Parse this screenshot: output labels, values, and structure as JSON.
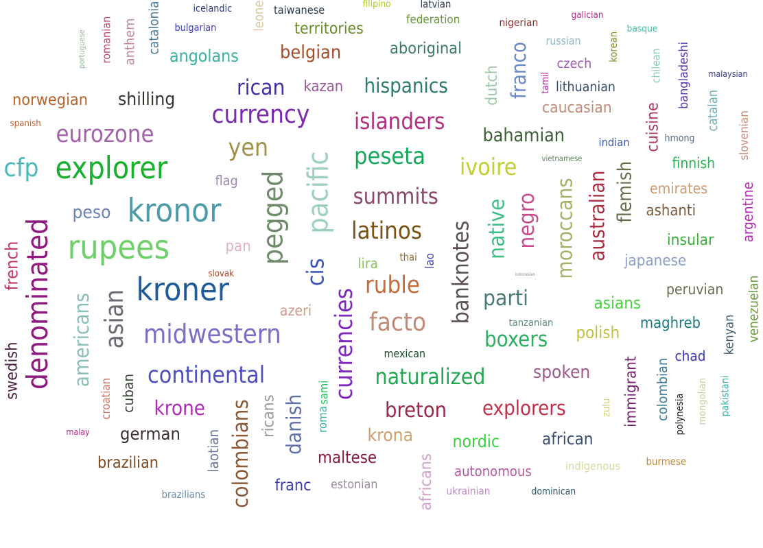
{
  "words": [
    {
      "text": "denominated",
      "color": "#8e1a7e"
    },
    {
      "text": "rupees",
      "color": "#6fcf6a"
    },
    {
      "text": "kronor",
      "color": "#4e9aa8"
    },
    {
      "text": "explorer",
      "color": "#16b02c"
    },
    {
      "text": "kroner",
      "color": "#1d5c98"
    },
    {
      "text": "pegged",
      "color": "#6f8a6a"
    },
    {
      "text": "pacific",
      "color": "#9ed0c0"
    },
    {
      "text": "midwestern",
      "color": "#7b6fc4"
    },
    {
      "text": "currency",
      "color": "#7a2ab0"
    },
    {
      "text": "currencies",
      "color": "#7d29b8"
    },
    {
      "text": "banknotes",
      "color": "#5a4e52"
    },
    {
      "text": "colombians",
      "color": "#8a5a38"
    },
    {
      "text": "continental",
      "color": "#4e50c0"
    },
    {
      "text": "naturalized",
      "color": "#22a850"
    },
    {
      "text": "islanders",
      "color": "#b03080"
    },
    {
      "text": "latinos",
      "color": "#7a5218"
    },
    {
      "text": "summits",
      "color": "#8a4a6e"
    },
    {
      "text": "hispanics",
      "color": "#2a7a70"
    },
    {
      "text": "asian",
      "color": "#6a6a72"
    },
    {
      "text": "cfp",
      "color": "#4ab8b8"
    },
    {
      "text": "ruble",
      "color": "#c66a3a"
    },
    {
      "text": "facto",
      "color": "#c08a78"
    },
    {
      "text": "eurozone",
      "color": "#a262a8"
    },
    {
      "text": "yen",
      "color": "#a0924a"
    },
    {
      "text": "rican",
      "color": "#4030a0"
    },
    {
      "text": "peseta",
      "color": "#14a85a"
    },
    {
      "text": "australian",
      "color": "#aa2e42"
    },
    {
      "text": "moroccans",
      "color": "#a8b068"
    },
    {
      "text": "negro",
      "color": "#c84a8a"
    },
    {
      "text": "native",
      "color": "#3cc088"
    },
    {
      "text": "ivoire",
      "color": "#c0d030"
    },
    {
      "text": "bahamian",
      "color": "#3a5e34"
    },
    {
      "text": "franco",
      "color": "#6a88c8"
    },
    {
      "text": "belgian",
      "color": "#a04e2a"
    },
    {
      "text": "aboriginal",
      "color": "#3a7a6a"
    },
    {
      "text": "shilling",
      "color": "#3a3430"
    },
    {
      "text": "angolans",
      "color": "#3ab0a0"
    },
    {
      "text": "explorers",
      "color": "#c0304a"
    },
    {
      "text": "breton",
      "color": "#9a2a4a"
    },
    {
      "text": "krone",
      "color": "#b02cb8"
    },
    {
      "text": "danish",
      "color": "#6070a8"
    },
    {
      "text": "boxers",
      "color": "#2cb060"
    },
    {
      "text": "parti",
      "color": "#4a7a74"
    },
    {
      "text": "spoken",
      "color": "#a05a8a"
    },
    {
      "text": "flemish",
      "color": "#6a6a50"
    },
    {
      "text": "americans",
      "color": "#8ac0b8"
    },
    {
      "text": "cis",
      "color": "#3a56b8"
    },
    {
      "text": "german",
      "color": "#3a2e2e"
    },
    {
      "text": "norwegian",
      "color": "#b8622a"
    },
    {
      "text": "swedish",
      "color": "#4a2040"
    },
    {
      "text": "french",
      "color": "#c03a70"
    },
    {
      "text": "peso",
      "color": "#6a82b0"
    },
    {
      "text": "immigrant",
      "color": "#7a1e6e"
    },
    {
      "text": "maltese",
      "color": "#8a1a3a"
    },
    {
      "text": "krona",
      "color": "#d0a070"
    },
    {
      "text": "nordic",
      "color": "#3ad040"
    },
    {
      "text": "african",
      "color": "#3a4e70"
    },
    {
      "text": "brazilian",
      "color": "#7a4a22"
    },
    {
      "text": "cuisine",
      "color": "#b03860"
    },
    {
      "text": "colombian",
      "color": "#3a7a98"
    },
    {
      "text": "territories",
      "color": "#6a8a2a"
    },
    {
      "text": "caucasian",
      "color": "#c08a78"
    },
    {
      "text": "japanese",
      "color": "#8aa0c8"
    },
    {
      "text": "polish",
      "color": "#c0c040"
    },
    {
      "text": "asians",
      "color": "#4ad040"
    },
    {
      "text": "maghreb",
      "color": "#1a7a80"
    },
    {
      "text": "peruvian",
      "color": "#6a6a50"
    },
    {
      "text": "venezuelan",
      "color": "#6a9a3a"
    },
    {
      "text": "ricans",
      "color": "#9a9a9a"
    },
    {
      "text": "kazan",
      "color": "#9a5a9a"
    },
    {
      "text": "dutch",
      "color": "#a0c8a8"
    },
    {
      "text": "lithuanian",
      "color": "#3a4e6a"
    },
    {
      "text": "insular",
      "color": "#3ab03a"
    },
    {
      "text": "emirates",
      "color": "#c89a70"
    },
    {
      "text": "ashanti",
      "color": "#7a5a3a"
    },
    {
      "text": "autonomous",
      "color": "#b85aa0"
    },
    {
      "text": "franc",
      "color": "#3a3aa8"
    },
    {
      "text": "africans",
      "color": "#d0a0c8"
    },
    {
      "text": "laotian",
      "color": "#6a7a98"
    },
    {
      "text": "cuban",
      "color": "#3a4a38"
    },
    {
      "text": "pan",
      "color": "#e0b0c0"
    },
    {
      "text": "bangladeshi",
      "color": "#5a3ab0"
    },
    {
      "text": "chad",
      "color": "#3a3ab8"
    },
    {
      "text": "mongolian",
      "color": "#d0c8a0"
    },
    {
      "text": "czech",
      "color": "#a05ab0"
    },
    {
      "text": "russian",
      "color": "#8ab8c8"
    },
    {
      "text": "catalan",
      "color": "#70b0b0"
    },
    {
      "text": "anthem",
      "color": "#c08a9a"
    },
    {
      "text": "catalonia",
      "color": "#4a7a98"
    },
    {
      "text": "estonian",
      "color": "#9a8a9a"
    },
    {
      "text": "kenyan",
      "color": "#3a5a6a"
    },
    {
      "text": "argentine",
      "color": "#b02cb0"
    },
    {
      "text": "slovenian",
      "color": "#c88a70"
    },
    {
      "text": "romanian",
      "color": "#b84a7a"
    },
    {
      "text": "leone",
      "color": "#d8c8a0"
    },
    {
      "text": "finnish",
      "color": "#2ab050"
    },
    {
      "text": "indigenous",
      "color": "#d8d8a0"
    },
    {
      "text": "azeri",
      "color": "#d09a8a"
    },
    {
      "text": "dominican",
      "color": "#2a5a6a"
    },
    {
      "text": "brazilians",
      "color": "#6a8aa8"
    },
    {
      "text": "ukrainian",
      "color": "#c888c8"
    },
    {
      "text": "burmese",
      "color": "#c8883a"
    },
    {
      "text": "mexican",
      "color": "#1a4a2a"
    },
    {
      "text": "federation",
      "color": "#6a9a3a"
    },
    {
      "text": "croatian",
      "color": "#d07060"
    },
    {
      "text": "lira",
      "color": "#8ac060"
    },
    {
      "text": "indian",
      "color": "#3a5ab0"
    },
    {
      "text": "flag",
      "color": "#9a88b0"
    },
    {
      "text": "chilean",
      "color": "#8ad0b0"
    },
    {
      "text": "nigerian",
      "color": "#8a2a2a"
    },
    {
      "text": "taiwanese",
      "color": "#2a3a4a"
    },
    {
      "text": "bulgarian",
      "color": "#3a3ab0"
    },
    {
      "text": "icelandic",
      "color": "#2a3a8a"
    },
    {
      "text": "spanish",
      "color": "#c0602a"
    },
    {
      "text": "malaysian",
      "color": "#3a3a8a"
    },
    {
      "text": "galician",
      "color": "#c02a8a"
    },
    {
      "text": "tanzanian",
      "color": "#5a8a7a"
    },
    {
      "text": "korean",
      "color": "#8a8a2a"
    },
    {
      "text": "hmong",
      "color": "#5a6a7a"
    },
    {
      "text": "polynesia",
      "color": "#1a1a1a"
    },
    {
      "text": "pakistani",
      "color": "#3ab0a0"
    },
    {
      "text": "sami",
      "color": "#2ac05a"
    },
    {
      "text": "roma",
      "color": "#3ab0a0"
    },
    {
      "text": "zulu",
      "color": "#d0d070"
    },
    {
      "text": "tamil",
      "color": "#b02cb0"
    },
    {
      "text": "basque",
      "color": "#3ac0a0"
    },
    {
      "text": "latvian",
      "color": "#2a3a4a"
    },
    {
      "text": "filipino",
      "color": "#b0c82a"
    },
    {
      "text": "portuguese",
      "color": "#9ab89a"
    },
    {
      "text": "thai",
      "color": "#8a6a3a"
    },
    {
      "text": "lao",
      "color": "#3a3ab0"
    },
    {
      "text": "slovak",
      "color": "#b0402a"
    },
    {
      "text": "malay",
      "color": "#c02a8a"
    },
    {
      "text": "vietnamese",
      "color": "#5a8a5a"
    },
    {
      "text": "indonesian",
      "color": "#8a8a8a"
    }
  ]
}
